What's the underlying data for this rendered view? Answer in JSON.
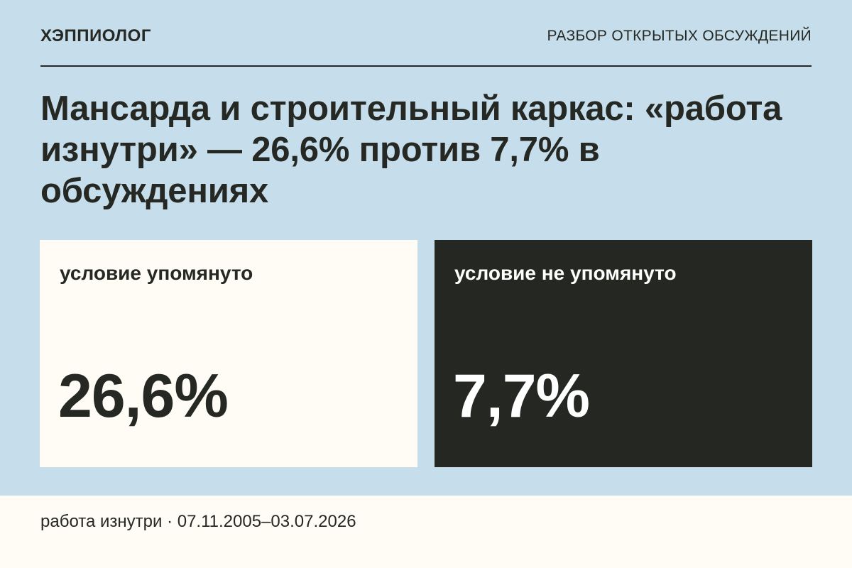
{
  "header": {
    "brand": "ХЭППИОЛОГ",
    "section": "РАЗБОР ОТКРЫТЫХ ОБСУЖДЕНИЙ"
  },
  "headline": "Мансарда и строительный каркас: «работа изнутри» — 26,6% против 7,7% в обсуждениях",
  "cards": [
    {
      "label": "условие упомянуто",
      "value": "26,6%"
    },
    {
      "label": "условие не упомянуто",
      "value": "7,7%"
    }
  ],
  "footer": {
    "text": "работа изнутри · 07.11.2005–03.07.2026"
  },
  "colors": {
    "background": "#c6deeb",
    "light_card": "#fefcf4",
    "dark_card": "#252822",
    "text_dark": "#262823",
    "text_light": "#ffffff"
  }
}
